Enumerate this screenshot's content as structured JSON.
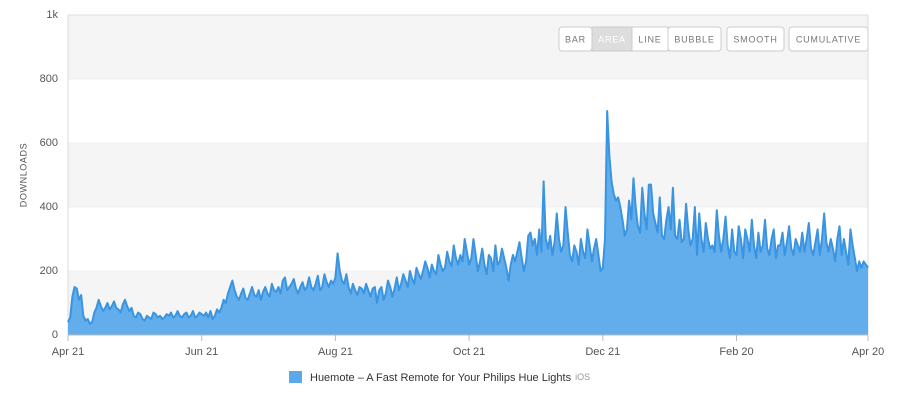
{
  "chart_data": {
    "type": "area",
    "y_label": "DOWNLOADS",
    "ylim": [
      0,
      1000
    ],
    "yticks": [
      0,
      200,
      400,
      600,
      800,
      {
        "value": 1000,
        "label": "1k"
      }
    ],
    "grid": true,
    "categories": [
      "Apr 21",
      null,
      null,
      null,
      null,
      null,
      null,
      null,
      null,
      null,
      null,
      null,
      null,
      null,
      null,
      null,
      null,
      null,
      null,
      null,
      null,
      null,
      null,
      null,
      null,
      null,
      null,
      null,
      null,
      null,
      null,
      null,
      null,
      null,
      null,
      null,
      null,
      null,
      null,
      null,
      null,
      null,
      null,
      null,
      null,
      null,
      null,
      null,
      null,
      null,
      null,
      null,
      null,
      null,
      null,
      null,
      null,
      null,
      null,
      null,
      null,
      "Jun 21",
      null,
      null,
      null,
      null,
      null,
      null,
      null,
      null,
      null,
      null,
      null,
      null,
      null,
      null,
      null,
      null,
      null,
      null,
      null,
      null,
      null,
      null,
      null,
      null,
      null,
      null,
      null,
      null,
      null,
      null,
      null,
      null,
      null,
      null,
      null,
      null,
      null,
      null,
      null,
      null,
      null,
      null,
      null,
      null,
      null,
      null,
      null,
      null,
      null,
      null,
      null,
      null,
      null,
      null,
      null,
      null,
      null,
      null,
      null,
      null,
      "Aug 21",
      null,
      null,
      null,
      null,
      null,
      null,
      null,
      null,
      null,
      null,
      null,
      null,
      null,
      null,
      null,
      null,
      null,
      null,
      null,
      null,
      null,
      null,
      null,
      null,
      null,
      null,
      null,
      null,
      null,
      null,
      null,
      null,
      null,
      null,
      null,
      null,
      null,
      null,
      null,
      null,
      null,
      null,
      null,
      null,
      null,
      null,
      null,
      null,
      null,
      null,
      null,
      null,
      null,
      null,
      null,
      null,
      null,
      null,
      null,
      null,
      "Oct 21",
      null,
      null,
      null,
      null,
      null,
      null,
      null,
      null,
      null,
      null,
      null,
      null,
      null,
      null,
      null,
      null,
      null,
      null,
      null,
      null,
      null,
      null,
      null,
      null,
      null,
      null,
      null,
      null,
      null,
      null,
      null,
      null,
      null,
      null,
      null,
      null,
      null,
      null,
      null,
      null,
      null,
      null,
      null,
      null,
      null,
      null,
      null,
      null,
      null,
      null,
      null,
      null,
      null,
      null,
      null,
      null,
      null,
      null,
      null,
      null,
      "Dec 21",
      null,
      null,
      null,
      null,
      null,
      null,
      null,
      null,
      null,
      null,
      null,
      null,
      null,
      null,
      null,
      null,
      null,
      null,
      null,
      null,
      null,
      null,
      null,
      null,
      null,
      null,
      null,
      null,
      null,
      null,
      null,
      null,
      null,
      null,
      null,
      null,
      null,
      null,
      null,
      null,
      null,
      null,
      null,
      null,
      null,
      null,
      null,
      null,
      null,
      null,
      null,
      null,
      null,
      null,
      null,
      null,
      null,
      null,
      null,
      null,
      "Feb 20",
      null,
      null,
      null,
      null,
      null,
      null,
      null,
      null,
      null,
      null,
      null,
      null,
      null,
      null,
      null,
      null,
      null,
      null,
      null,
      null,
      null,
      null,
      null,
      null,
      null,
      null,
      null,
      null,
      null,
      null,
      null,
      null,
      null,
      null,
      null,
      null,
      null,
      null,
      null,
      null,
      null,
      null,
      null,
      null,
      null,
      null,
      null,
      null,
      null,
      null,
      null,
      null,
      null,
      null,
      null,
      null,
      null,
      null,
      null,
      "Apr 20"
    ],
    "series": [
      {
        "name": "Huemote – A Fast Remote for Your Philips Hue Lights",
        "platform": "iOS",
        "color": "#5aa9ea",
        "line_color": "#3a94e0",
        "values": [
          40,
          55,
          120,
          150,
          145,
          110,
          125,
          60,
          45,
          50,
          35,
          40,
          70,
          85,
          110,
          90,
          75,
          85,
          100,
          80,
          90,
          105,
          85,
          80,
          70,
          95,
          110,
          90,
          75,
          85,
          60,
          55,
          70,
          65,
          50,
          45,
          60,
          55,
          50,
          70,
          65,
          55,
          60,
          50,
          55,
          65,
          60,
          70,
          55,
          60,
          75,
          60,
          55,
          65,
          70,
          55,
          60,
          75,
          55,
          60,
          70,
          65,
          60,
          70,
          55,
          75,
          50,
          60,
          80,
          70,
          85,
          110,
          100,
          130,
          150,
          170,
          140,
          120,
          110,
          130,
          145,
          115,
          110,
          130,
          150,
          125,
          120,
          140,
          110,
          135,
          150,
          130,
          120,
          160,
          140,
          135,
          150,
          130,
          170,
          180,
          140,
          150,
          160,
          175,
          145,
          130,
          150,
          165,
          140,
          150,
          180,
          150,
          140,
          160,
          185,
          140,
          150,
          190,
          165,
          150,
          170,
          160,
          180,
          255,
          200,
          170,
          160,
          190,
          150,
          130,
          160,
          140,
          125,
          150,
          145,
          130,
          160,
          140,
          120,
          145,
          150,
          100,
          140,
          150,
          110,
          130,
          170,
          150,
          120,
          145,
          180,
          140,
          160,
          190,
          170,
          150,
          200,
          175,
          160,
          210,
          190,
          175,
          200,
          230,
          210,
          180,
          220,
          200,
          190,
          250,
          220,
          200,
          210,
          260,
          230,
          215,
          280,
          240,
          220,
          250,
          230,
          300,
          260,
          220,
          240,
          300,
          250,
          200,
          230,
          270,
          220,
          190,
          250,
          240,
          200,
          280,
          220,
          230,
          270,
          240,
          210,
          170,
          220,
          250,
          230,
          260,
          290,
          240,
          200,
          230,
          310,
          320,
          280,
          300,
          250,
          330,
          260,
          480,
          300,
          270,
          310,
          250,
          290,
          380,
          300,
          260,
          280,
          400,
          320,
          250,
          230,
          280,
          260,
          220,
          300,
          260,
          240,
          330,
          280,
          230,
          270,
          300,
          250,
          200,
          210,
          300,
          700,
          560,
          480,
          440,
          420,
          430,
          400,
          360,
          310,
          330,
          420,
          360,
          490,
          400,
          340,
          320,
          460,
          380,
          330,
          470,
          470,
          380,
          350,
          320,
          430,
          310,
          300,
          360,
          400,
          330,
          460,
          310,
          300,
          360,
          290,
          300,
          410,
          330,
          280,
          300,
          400,
          250,
          380,
          300,
          260,
          350,
          300,
          270,
          280,
          260,
          390,
          310,
          260,
          300,
          370,
          280,
          240,
          330,
          260,
          250,
          340,
          300,
          240,
          330,
          300,
          260,
          360,
          280,
          240,
          320,
          260,
          280,
          360,
          270,
          250,
          300,
          330,
          240,
          280,
          280,
          320,
          250,
          290,
          340,
          270,
          250,
          300,
          280,
          260,
          320,
          260,
          300,
          350,
          270,
          250,
          290,
          330,
          250,
          300,
          380,
          290,
          260,
          300,
          270,
          230,
          300,
          340,
          250,
          300,
          260,
          220,
          330,
          280,
          240,
          200,
          230,
          210,
          230,
          220,
          210
        ]
      }
    ]
  },
  "controls": {
    "chart_types": [
      "BAR",
      "AREA",
      "LINE",
      "BUBBLE"
    ],
    "active": "AREA",
    "options": [
      "SMOOTH",
      "CUMULATIVE"
    ]
  }
}
